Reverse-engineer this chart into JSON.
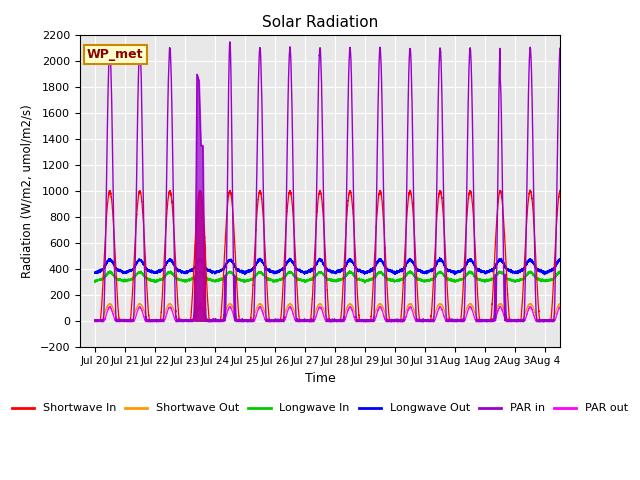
{
  "title": "Solar Radiation",
  "xlabel": "Time",
  "ylabel": "Radiation (W/m2, umol/m2/s)",
  "ylim": [
    -200,
    2200
  ],
  "background_color": "#e8e8e8",
  "grid_color": "#ffffff",
  "annotation_text": "WP_met",
  "annotation_bg": "#ffffcc",
  "annotation_border": "#cc8800",
  "tick_labels": [
    "Jul 20",
    "Jul 21",
    "Jul 22",
    "Jul 23",
    "Jul 24",
    "Jul 25",
    "Jul 26",
    "Jul 27",
    "Jul 28",
    "Jul 29",
    "Jul 30",
    "Jul 31",
    "Aug 1",
    "Aug 2",
    "Aug 3",
    "Aug 4"
  ],
  "legend": [
    {
      "label": "Shortwave In",
      "color": "#ff0000"
    },
    {
      "label": "Shortwave Out",
      "color": "#ff9900"
    },
    {
      "label": "Longwave In",
      "color": "#00cc00"
    },
    {
      "label": "Longwave Out",
      "color": "#0000ff"
    },
    {
      "label": "PAR in",
      "color": "#9900cc"
    },
    {
      "label": "PAR out",
      "color": "#ff00ff"
    }
  ],
  "num_days": 16
}
